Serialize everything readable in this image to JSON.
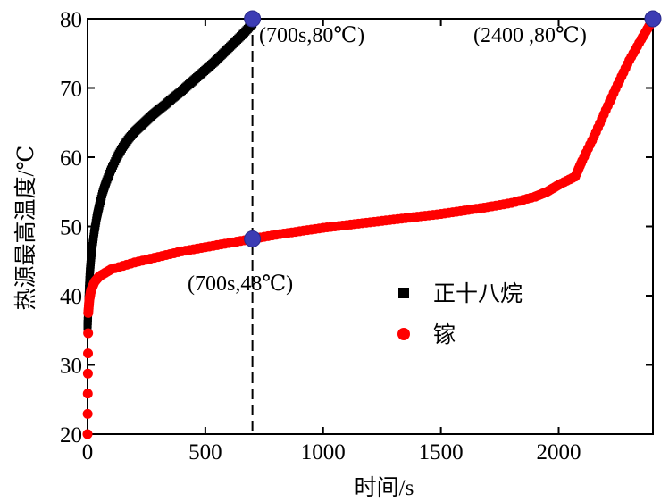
{
  "chart_data": {
    "type": "scatter",
    "xlabel": "时间/s",
    "ylabel": "热源最高温度/℃",
    "xlim": [
      0,
      2400
    ],
    "ylim": [
      20,
      80
    ],
    "x_ticks": [
      0,
      500,
      1000,
      1500,
      2000
    ],
    "y_ticks": [
      20,
      30,
      40,
      50,
      60,
      70,
      80
    ],
    "grid": false,
    "legend_position": "right-middle",
    "series": [
      {
        "name": "正十八烷",
        "color": "#000000",
        "marker": "square",
        "points": [
          [
            0,
            35.5
          ],
          [
            3,
            38
          ],
          [
            6,
            41
          ],
          [
            10,
            43.5
          ],
          [
            15,
            45.5
          ],
          [
            22,
            47.5
          ],
          [
            30,
            49.5
          ],
          [
            40,
            51.5
          ],
          [
            50,
            53
          ],
          [
            65,
            55
          ],
          [
            80,
            56.5
          ],
          [
            100,
            58.2
          ],
          [
            125,
            60
          ],
          [
            150,
            61.5
          ],
          [
            175,
            62.7
          ],
          [
            200,
            63.7
          ],
          [
            225,
            64.5
          ],
          [
            250,
            65.3
          ],
          [
            275,
            66.1
          ],
          [
            300,
            66.8
          ],
          [
            330,
            67.6
          ],
          [
            360,
            68.5
          ],
          [
            390,
            69.3
          ],
          [
            420,
            70.2
          ],
          [
            450,
            71.1
          ],
          [
            480,
            72
          ],
          [
            510,
            72.9
          ],
          [
            540,
            73.8
          ],
          [
            570,
            74.8
          ],
          [
            600,
            75.8
          ],
          [
            630,
            76.8
          ],
          [
            660,
            77.8
          ],
          [
            690,
            78.9
          ],
          [
            700,
            79.3
          ]
        ]
      },
      {
        "name": "镓",
        "color": "#ff0000",
        "marker": "circle",
        "points": [
          [
            0,
            20
          ],
          [
            3,
            37.5
          ],
          [
            8,
            39.5
          ],
          [
            15,
            40.8
          ],
          [
            30,
            42
          ],
          [
            50,
            42.8
          ],
          [
            100,
            43.8
          ],
          [
            200,
            44.8
          ],
          [
            300,
            45.6
          ],
          [
            400,
            46.4
          ],
          [
            500,
            47
          ],
          [
            600,
            47.6
          ],
          [
            700,
            48.2
          ],
          [
            800,
            48.8
          ],
          [
            900,
            49.3
          ],
          [
            1000,
            49.8
          ],
          [
            1100,
            50.2
          ],
          [
            1200,
            50.6
          ],
          [
            1300,
            51
          ],
          [
            1400,
            51.4
          ],
          [
            1500,
            51.8
          ],
          [
            1600,
            52.3
          ],
          [
            1700,
            52.8
          ],
          [
            1800,
            53.4
          ],
          [
            1900,
            54.3
          ],
          [
            1950,
            55
          ],
          [
            2000,
            56
          ],
          [
            2070,
            57.2
          ],
          [
            2100,
            59.5
          ],
          [
            2150,
            63
          ],
          [
            2200,
            66.8
          ],
          [
            2250,
            70.5
          ],
          [
            2300,
            74
          ],
          [
            2350,
            77
          ],
          [
            2390,
            79.3
          ]
        ]
      }
    ],
    "highlight_points": [
      {
        "x": 700,
        "y": 80,
        "label": "(700s,80℃)"
      },
      {
        "x": 700,
        "y": 48.2,
        "label": "(700s,48℃)"
      },
      {
        "x": 2400,
        "y": 80,
        "label": "(2400 ,80℃)"
      }
    ],
    "vertical_line_x": 700,
    "highlight_color": "#3c3cb4"
  }
}
